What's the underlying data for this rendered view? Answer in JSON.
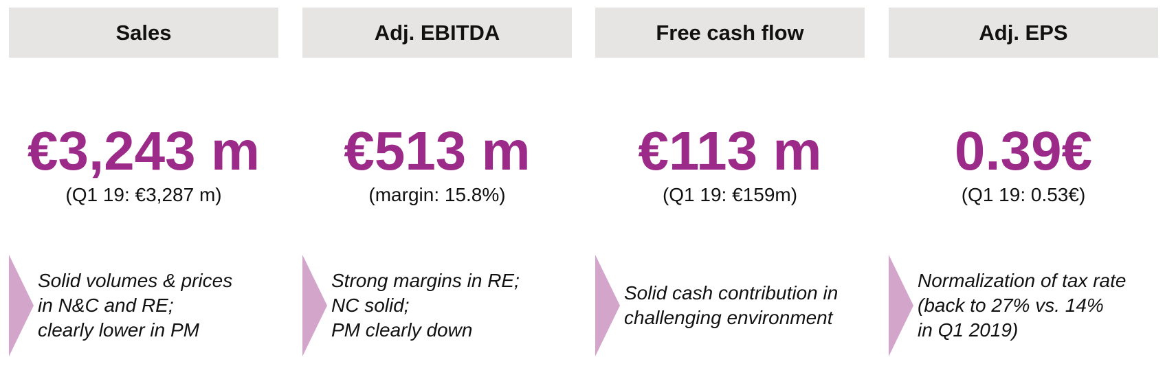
{
  "colors": {
    "header_background": "#e6e5e4",
    "value_accent": "#9b2a88",
    "chevron": "#d4a5cb",
    "text": "#111111"
  },
  "cards": [
    {
      "header": "Sales",
      "value": "€3,243 m",
      "comparison": "(Q1 19: €3,287 m)",
      "note_lines": [
        "Solid volumes & prices",
        "in N&C and RE;",
        "clearly lower in PM"
      ]
    },
    {
      "header": "Adj. EBITDA",
      "value": "€513 m",
      "comparison": "(margin: 15.8%)",
      "note_lines": [
        "Strong margins in RE;",
        "NC solid;",
        "PM clearly down"
      ]
    },
    {
      "header": "Free cash flow",
      "value": "€113 m",
      "comparison": "(Q1 19: €159m)",
      "note_lines": [
        "Solid cash contribution in",
        "challenging environment"
      ]
    },
    {
      "header": "Adj. EPS",
      "value": "0.39€",
      "comparison": "(Q1 19: 0.53€)",
      "note_lines": [
        "Normalization of tax rate",
        "(back to 27% vs. 14%",
        "in Q1 2019)"
      ]
    }
  ]
}
